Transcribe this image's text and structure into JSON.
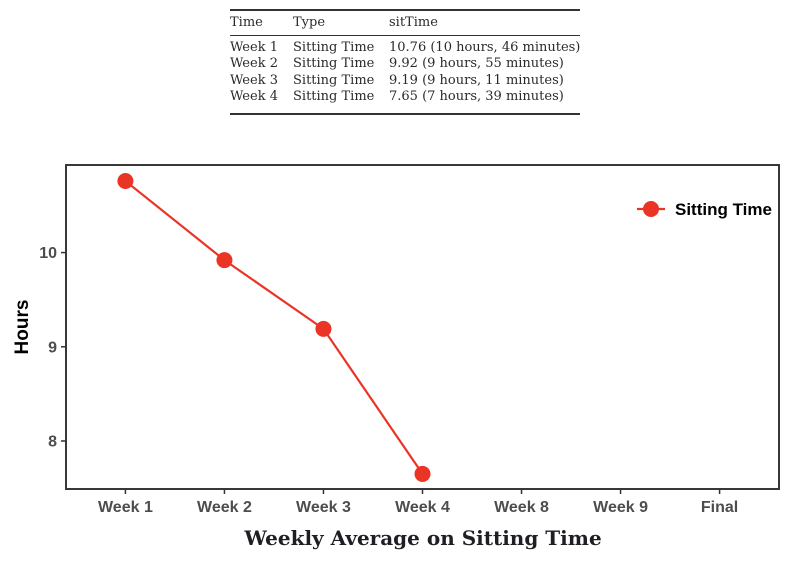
{
  "table": {
    "columns": [
      "Time",
      "Type",
      "sitTime"
    ],
    "rows": [
      [
        "Week 1",
        "Sitting Time",
        "10.76 (10 hours, 46 minutes)"
      ],
      [
        "Week 2",
        "Sitting Time",
        "9.92 (9 hours, 55 minutes)"
      ],
      [
        "Week 3",
        "Sitting Time",
        "9.19 (9 hours, 11 minutes)"
      ],
      [
        "Week 4",
        "Sitting Time",
        "7.65 (7 hours, 39 minutes)"
      ]
    ]
  },
  "chart_data": {
    "type": "line",
    "categories": [
      "Week 1",
      "Week 2",
      "Week 3",
      "Week 4",
      "Week 8",
      "Week 9",
      "Final"
    ],
    "series": [
      {
        "name": "Sitting Time",
        "values": [
          10.76,
          9.92,
          9.19,
          7.65,
          null,
          null,
          null
        ]
      }
    ],
    "title": "",
    "xlabel": "Weekly Average on Sitting Time",
    "ylabel": "Hours",
    "yticks": [
      8,
      9,
      10
    ],
    "ylim": [
      7.49,
      10.93
    ],
    "grid": false,
    "legend_position": "inside-top-right",
    "colors": {
      "series": "#EA3425",
      "panel_border": "#383838",
      "tick_mark": "#333333",
      "tick_label": "#4D4D4E",
      "axis_label": "#000000"
    }
  }
}
